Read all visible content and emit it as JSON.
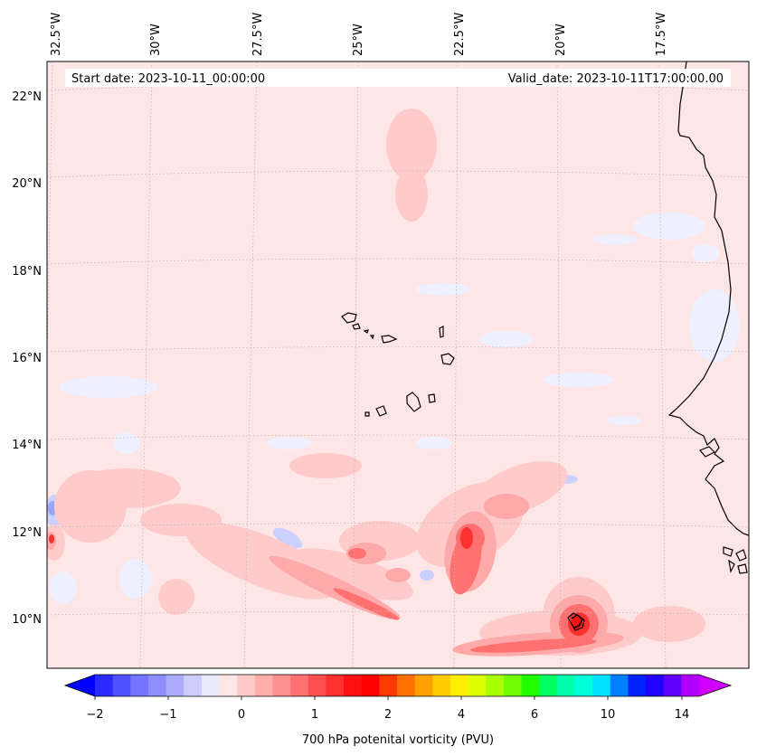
{
  "map": {
    "header": {
      "start_label": "Start date: 2023-10-11_00:00:00",
      "valid_label": "Valid_date: 2023-10-11T17:00:00.00"
    },
    "lon_labels": [
      "32.5°W",
      "30°W",
      "27.5°W",
      "25°W",
      "22.5°W",
      "20°W",
      "17.5°W"
    ],
    "lat_labels": [
      "22°N",
      "20°N",
      "18°N",
      "16°N",
      "14°N",
      "12°N",
      "10°N"
    ],
    "background_color": "#ffe6e6",
    "coastline_color": "#000000"
  },
  "colorbar": {
    "title": "700 hPa potenital vorticity (PVU)",
    "tick_labels": [
      "−2",
      "−1",
      "0",
      "1",
      "2",
      "4",
      "6",
      "10",
      "14"
    ],
    "colors": [
      "#0000ff",
      "#2a2aff",
      "#5050ff",
      "#7474ff",
      "#8e8eff",
      "#acacff",
      "#ccccff",
      "#eaeaff",
      "#ffe6e6",
      "#ffcaca",
      "#ffaeae",
      "#ff8e8e",
      "#ff7070",
      "#ff5050",
      "#ff3030",
      "#ff1010",
      "#ff0000",
      "#ff3a00",
      "#ff7000",
      "#ffa000",
      "#ffcc00",
      "#ffee00",
      "#ddff00",
      "#aaff00",
      "#70ff00",
      "#20ff00",
      "#00ff60",
      "#00ffaa",
      "#00ffd8",
      "#00e0ff",
      "#0080ff",
      "#0020ff",
      "#2000ff",
      "#6000ff",
      "#b000ff",
      "#d000ff"
    ]
  }
}
